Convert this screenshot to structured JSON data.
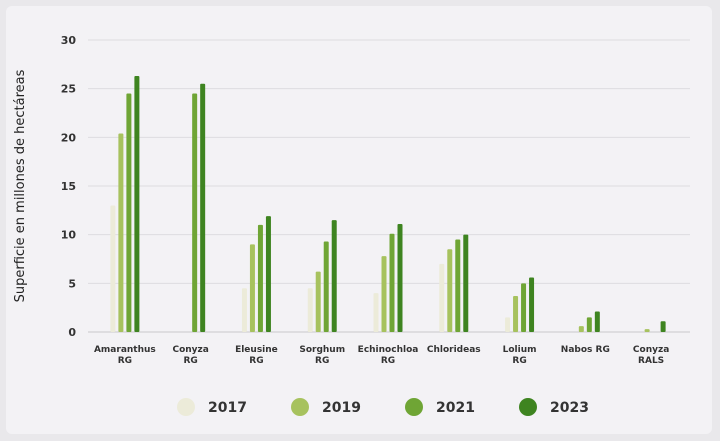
{
  "chart_data": {
    "type": "bar",
    "title": "",
    "xlabel": "",
    "ylabel": "Superficie en millones de hectáreas",
    "ylim": [
      0,
      30
    ],
    "yticks": [
      0,
      5,
      10,
      15,
      20,
      25,
      30
    ],
    "grid": true,
    "legend_position": "bottom",
    "categories": [
      [
        "Amaranthus",
        "RG"
      ],
      [
        "Conyza",
        "RG"
      ],
      [
        "Eleusine",
        "RG"
      ],
      [
        "Sorghum",
        "RG"
      ],
      [
        "Echinochloa",
        "RG"
      ],
      [
        "Chlorideas"
      ],
      [
        "Lolium",
        "RG"
      ],
      [
        "Nabos RG"
      ],
      [
        "Conyza",
        "RALS"
      ]
    ],
    "series": [
      {
        "name": "2017",
        "color": "#ecebd9",
        "values": [
          13,
          0,
          4.5,
          4.5,
          4,
          7,
          1.5,
          0,
          0
        ]
      },
      {
        "name": "2019",
        "color": "#a7c25e",
        "values": [
          20.4,
          0,
          9,
          6.2,
          7.8,
          8.5,
          3.7,
          0.6,
          0.3
        ]
      },
      {
        "name": "2021",
        "color": "#6fa535",
        "values": [
          24.5,
          24.5,
          11,
          9.3,
          10.1,
          9.5,
          5,
          1.5,
          0
        ]
      },
      {
        "name": "2023",
        "color": "#3e8420",
        "values": [
          26.3,
          25.5,
          11.9,
          11.5,
          11.1,
          10,
          5.6,
          2.1,
          1.1
        ]
      }
    ]
  }
}
